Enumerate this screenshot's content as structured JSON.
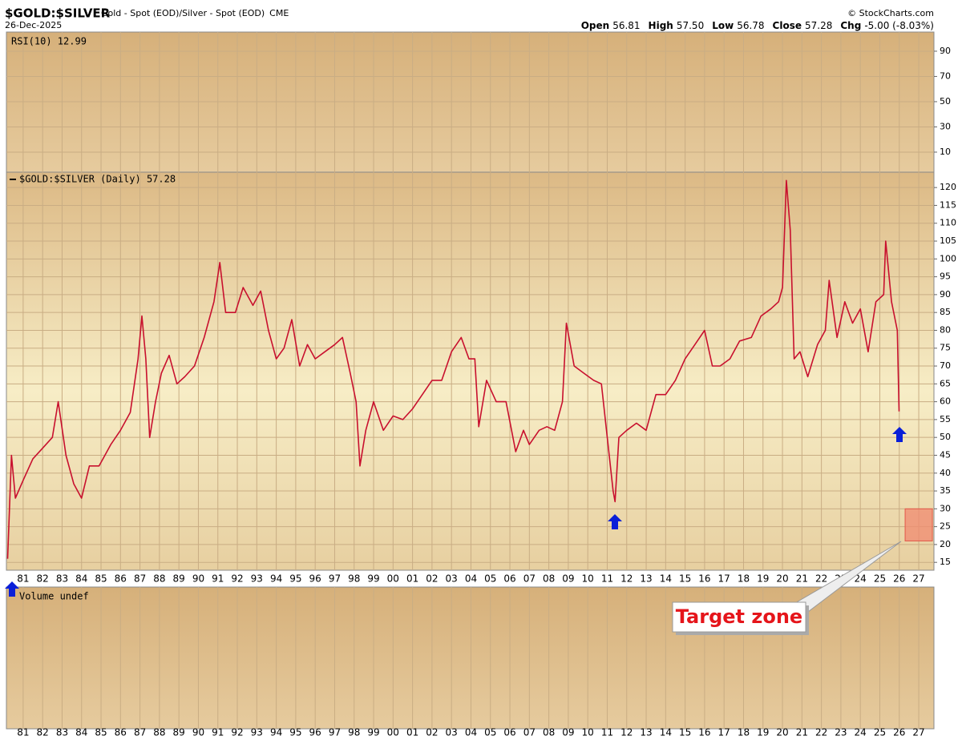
{
  "header": {
    "symbol": "$GOLD:$SILVER",
    "description": "Gold - Spot (EOD)/Silver - Spot (EOD)",
    "exchange": "CME",
    "source": "© StockCharts.com",
    "date": "26-Dec-2025",
    "quote": [
      {
        "label": "Open",
        "value": "56.81"
      },
      {
        "label": "High",
        "value": "57.50"
      },
      {
        "label": "Low",
        "value": "56.78"
      },
      {
        "label": "Close",
        "value": "57.28"
      },
      {
        "label": "Chg",
        "value": "-5.00 (-8.03%)"
      }
    ]
  },
  "chart_data": [
    {
      "type": "panel",
      "label": "RSI(10) 12.99",
      "ylim": [
        -5.9,
        105.2
      ],
      "yticks": [
        10,
        30,
        50,
        70,
        90
      ],
      "grid": true
    },
    {
      "type": "line",
      "grid": true,
      "xlim": [
        1980.14,
        2027.78
      ],
      "ylim": [
        12.8,
        124.3
      ],
      "yticks": [
        15,
        20,
        25,
        30,
        35,
        40,
        45,
        50,
        55,
        60,
        65,
        70,
        75,
        80,
        85,
        90,
        95,
        100,
        105,
        110,
        115,
        120
      ],
      "xticks": [
        {
          "value": 1981,
          "label": "81"
        },
        {
          "value": 1982,
          "label": "82"
        },
        {
          "value": 1983,
          "label": "83"
        },
        {
          "value": 1984,
          "label": "84"
        },
        {
          "value": 1985,
          "label": "85"
        },
        {
          "value": 1986,
          "label": "86"
        },
        {
          "value": 1987,
          "label": "87"
        },
        {
          "value": 1988,
          "label": "88"
        },
        {
          "value": 1989,
          "label": "89"
        },
        {
          "value": 1990,
          "label": "90"
        },
        {
          "value": 1991,
          "label": "91"
        },
        {
          "value": 1992,
          "label": "92"
        },
        {
          "value": 1993,
          "label": "93"
        },
        {
          "value": 1994,
          "label": "94"
        },
        {
          "value": 1995,
          "label": "95"
        },
        {
          "value": 1996,
          "label": "96"
        },
        {
          "value": 1997,
          "label": "97"
        },
        {
          "value": 1998,
          "label": "98"
        },
        {
          "value": 1999,
          "label": "99"
        },
        {
          "value": 2000,
          "label": "00"
        },
        {
          "value": 2001,
          "label": "01"
        },
        {
          "value": 2002,
          "label": "02"
        },
        {
          "value": 2003,
          "label": "03"
        },
        {
          "value": 2004,
          "label": "04"
        },
        {
          "value": 2005,
          "label": "05"
        },
        {
          "value": 2006,
          "label": "06"
        },
        {
          "value": 2007,
          "label": "07"
        },
        {
          "value": 2008,
          "label": "08"
        },
        {
          "value": 2009,
          "label": "09"
        },
        {
          "value": 2010,
          "label": "10"
        },
        {
          "value": 2011,
          "label": "11"
        },
        {
          "value": 2012,
          "label": "12"
        },
        {
          "value": 2013,
          "label": "13"
        },
        {
          "value": 2014,
          "label": "14"
        },
        {
          "value": 2015,
          "label": "15"
        },
        {
          "value": 2016,
          "label": "16"
        },
        {
          "value": 2017,
          "label": "17"
        },
        {
          "value": 2018,
          "label": "18"
        },
        {
          "value": 2019,
          "label": "19"
        },
        {
          "value": 2020,
          "label": "20"
        },
        {
          "value": 2021,
          "label": "21"
        },
        {
          "value": 2022,
          "label": "22"
        },
        {
          "value": 2023,
          "label": "23"
        },
        {
          "value": 2024,
          "label": "24"
        },
        {
          "value": 2025,
          "label": "25"
        },
        {
          "value": 2026,
          "label": "26"
        },
        {
          "value": 2027,
          "label": "27"
        }
      ],
      "x": [
        1980.2,
        1980.4,
        1980.6,
        1981.0,
        1981.5,
        1982.0,
        1982.5,
        1982.8,
        1983.2,
        1983.6,
        1984.0,
        1984.4,
        1984.9,
        1985.5,
        1986.0,
        1986.5,
        1986.9,
        1987.1,
        1987.3,
        1987.5,
        1987.8,
        1988.1,
        1988.5,
        1988.9,
        1989.3,
        1989.8,
        1990.3,
        1990.8,
        1991.1,
        1991.4,
        1991.9,
        1992.3,
        1992.8,
        1993.2,
        1993.6,
        1994.0,
        1994.4,
        1994.8,
        1995.2,
        1995.6,
        1996.0,
        1996.5,
        1997.0,
        1997.4,
        1997.8,
        1998.1,
        1998.3,
        1998.6,
        1999.0,
        1999.5,
        2000.0,
        2000.5,
        2001.0,
        2001.5,
        2002.0,
        2002.5,
        2003.0,
        2003.5,
        2003.9,
        2004.2,
        2004.4,
        2004.8,
        2005.3,
        2005.8,
        2006.3,
        2006.7,
        2007.0,
        2007.5,
        2007.9,
        2008.3,
        2008.7,
        2008.9,
        2009.3,
        2009.8,
        2010.3,
        2010.7,
        2011.0,
        2011.3,
        2011.4,
        2011.6,
        2012.0,
        2012.5,
        2013.0,
        2013.5,
        2014.0,
        2014.5,
        2015.0,
        2015.5,
        2016.0,
        2016.4,
        2016.8,
        2017.3,
        2017.8,
        2018.4,
        2018.9,
        2019.4,
        2019.8,
        2020.0,
        2020.2,
        2020.4,
        2020.6,
        2020.9,
        2021.3,
        2021.8,
        2022.2,
        2022.4,
        2022.8,
        2023.2,
        2023.6,
        2024.0,
        2024.4,
        2024.8,
        2025.2,
        2025.3,
        2025.6,
        2025.9,
        2025.99
      ],
      "series": [
        {
          "name": "$GOLD:$SILVER (Daily) 57.28",
          "color": "#c8102e",
          "values": [
            16,
            45,
            33,
            38,
            44,
            47,
            50,
            60,
            45,
            37,
            33,
            42,
            42,
            48,
            52,
            57,
            72,
            84,
            72,
            50,
            60,
            68,
            73,
            65,
            67,
            70,
            78,
            88,
            99,
            85,
            85,
            92,
            87,
            91,
            80,
            72,
            75,
            83,
            70,
            76,
            72,
            74,
            76,
            78,
            68,
            60,
            42,
            52,
            60,
            52,
            56,
            55,
            58,
            62,
            66,
            66,
            74,
            78,
            72,
            72,
            53,
            66,
            60,
            60,
            46,
            52,
            48,
            52,
            53,
            52,
            60,
            82,
            70,
            68,
            66,
            65,
            50,
            35,
            32,
            50,
            52,
            54,
            52,
            62,
            62,
            66,
            72,
            76,
            80,
            70,
            70,
            72,
            77,
            78,
            84,
            86,
            88,
            92,
            122,
            108,
            72,
            74,
            67,
            76,
            80,
            94,
            78,
            88,
            82,
            86,
            74,
            88,
            90,
            105,
            88,
            80,
            57.28
          ]
        }
      ],
      "annotations": [
        {
          "text": "Target zone",
          "ylim": [
            21,
            30
          ],
          "xlim": [
            2026.3,
            2027.7
          ],
          "color": "#f08a70"
        }
      ]
    },
    {
      "type": "panel",
      "label": "Volume undef"
    }
  ]
}
